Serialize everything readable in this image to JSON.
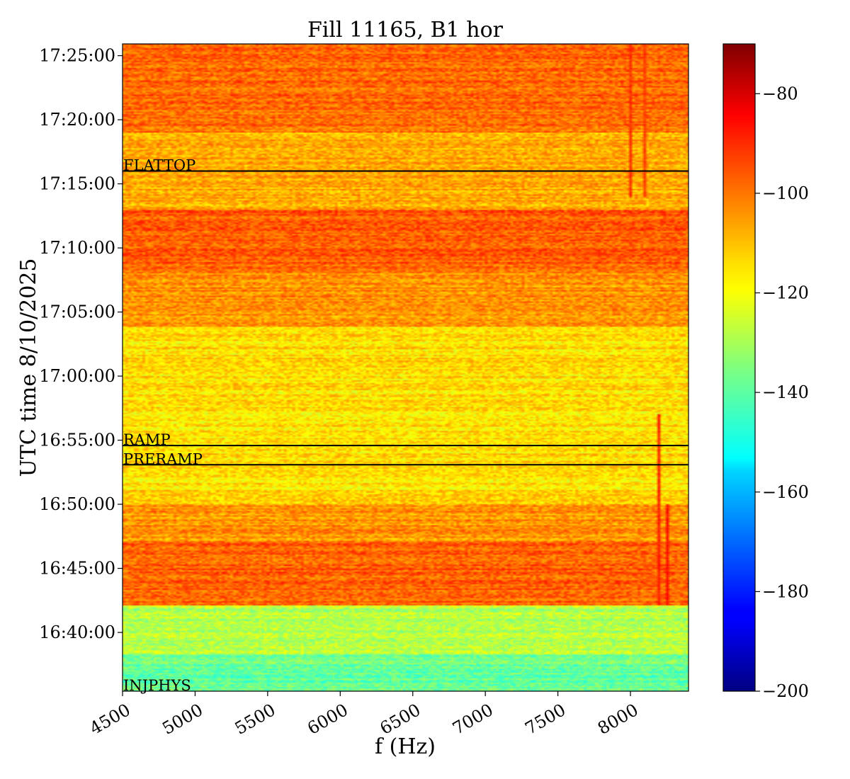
{
  "chart_data": {
    "type": "heatmap",
    "title": "Fill 11165, B1 hor",
    "xlabel": "f (Hz)",
    "ylabel": "UTC time 8/10/2025",
    "xlim": [
      4500,
      8400
    ],
    "ylim": [
      "16:35:25",
      "17:25:55"
    ],
    "x_ticks": [
      {
        "value": 4500,
        "label": "4500"
      },
      {
        "value": 5000,
        "label": "5000"
      },
      {
        "value": 5500,
        "label": "5500"
      },
      {
        "value": 6000,
        "label": "6000"
      },
      {
        "value": 6500,
        "label": "6500"
      },
      {
        "value": 7000,
        "label": "7000"
      },
      {
        "value": 7500,
        "label": "7500"
      },
      {
        "value": 8000,
        "label": "8000"
      }
    ],
    "y_ticks": [
      {
        "value": "16:40:00",
        "label": "16:40:00"
      },
      {
        "value": "16:45:00",
        "label": "16:45:00"
      },
      {
        "value": "16:50:00",
        "label": "16:50:00"
      },
      {
        "value": "16:55:00",
        "label": "16:55:00"
      },
      {
        "value": "17:00:00",
        "label": "17:00:00"
      },
      {
        "value": "17:05:00",
        "label": "17:05:00"
      },
      {
        "value": "17:10:00",
        "label": "17:10:00"
      },
      {
        "value": "17:15:00",
        "label": "17:15:00"
      },
      {
        "value": "17:20:00",
        "label": "17:20:00"
      },
      {
        "value": "17:25:00",
        "label": "17:25:00"
      }
    ],
    "colorbar": {
      "colormap": "jet",
      "range": [
        -200,
        -70
      ],
      "ticks": [
        {
          "value": -200,
          "label": "−200"
        },
        {
          "value": -180,
          "label": "−180"
        },
        {
          "value": -160,
          "label": "−160"
        },
        {
          "value": -140,
          "label": "−140"
        },
        {
          "value": -120,
          "label": "−120"
        },
        {
          "value": -100,
          "label": "−100"
        },
        {
          "value": -80,
          "label": "−80"
        }
      ]
    },
    "annotations": [
      {
        "label": "FLATTOP",
        "time": "17:16:00",
        "line": true
      },
      {
        "label": "RAMP",
        "time": "16:54:35",
        "line": true
      },
      {
        "label": "PRERAMP",
        "time": "16:53:05",
        "line": true
      },
      {
        "label": "INJPHYS",
        "time": "16:35:25",
        "line": false
      }
    ],
    "segments": [
      {
        "from": "16:35:25",
        "to": "16:38:15",
        "level_db": -138
      },
      {
        "from": "16:38:15",
        "to": "16:42:05",
        "level_db": -128
      },
      {
        "from": "16:42:05",
        "to": "16:47:05",
        "level_db": -98
      },
      {
        "from": "16:47:05",
        "to": "16:50:00",
        "level_db": -105
      },
      {
        "from": "16:50:00",
        "to": "17:03:50",
        "level_db": -115
      },
      {
        "from": "17:03:50",
        "to": "17:08:00",
        "level_db": -105
      },
      {
        "from": "17:08:00",
        "to": "17:13:00",
        "level_db": -98
      },
      {
        "from": "17:13:00",
        "to": "17:19:00",
        "level_db": -108
      },
      {
        "from": "17:19:00",
        "to": "17:25:55",
        "level_db": -100
      }
    ],
    "spectral_lines": [
      {
        "f_hz": 8000,
        "from": "17:14:00",
        "to": "17:25:55",
        "level_db": -92
      },
      {
        "f_hz": 8100,
        "from": "17:14:00",
        "to": "17:25:55",
        "level_db": -94
      },
      {
        "f_hz": 8200,
        "from": "16:42:05",
        "to": "16:57:00",
        "level_db": -90
      },
      {
        "f_hz": 8260,
        "from": "16:42:05",
        "to": "16:50:00",
        "level_db": -88
      }
    ]
  }
}
